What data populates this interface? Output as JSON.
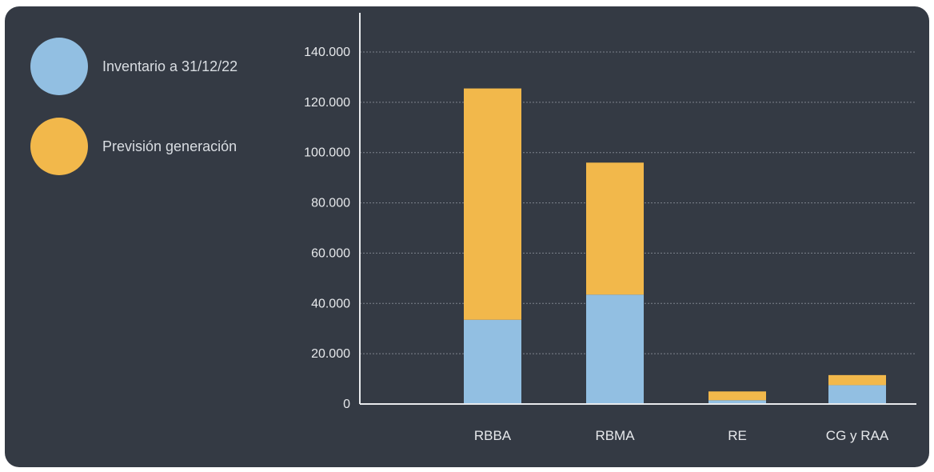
{
  "colors": {
    "background": "#343a44",
    "inventario": "#92bfe2",
    "prevision": "#f2b84b",
    "axis": "#e8eaed",
    "grid": "#7d838c"
  },
  "legend": [
    {
      "label": "Inventario a 31/12/22",
      "color": "#92bfe2"
    },
    {
      "label": "Previsión generación",
      "color": "#f2b84b"
    }
  ],
  "chart_data": {
    "type": "bar",
    "stacked": true,
    "categories": [
      "RBBA",
      "RBMA",
      "RE",
      "CG y RAA"
    ],
    "series": [
      {
        "name": "Inventario a 31/12/22",
        "values": [
          33500,
          43500,
          1500,
          7500
        ]
      },
      {
        "name": "Previsión generación",
        "values": [
          92000,
          52500,
          3500,
          4000
        ]
      }
    ],
    "ylim": [
      0,
      140000
    ],
    "yticks": [
      0,
      20000,
      40000,
      60000,
      80000,
      100000,
      120000,
      140000
    ],
    "ytick_labels": [
      "0",
      "20.000",
      "40.000",
      "60.000",
      "80.000",
      "100.000",
      "120.000",
      "140.000"
    ],
    "grid": true,
    "legend_position": "top-left"
  }
}
